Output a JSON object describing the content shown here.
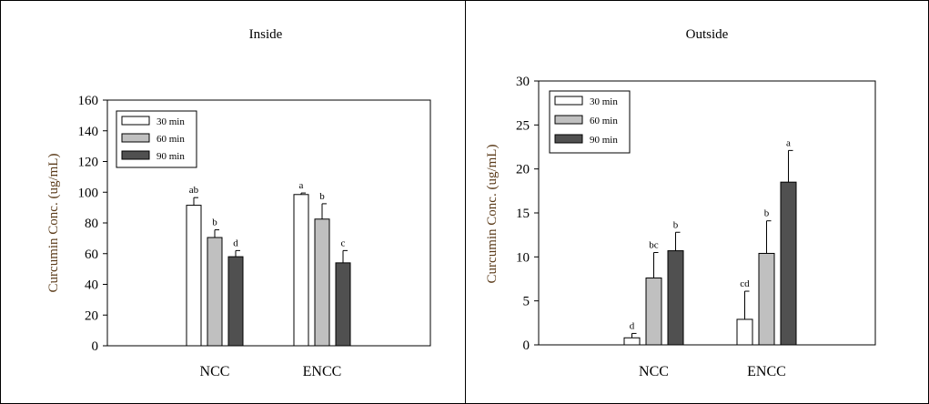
{
  "colors": {
    "series": [
      "#ffffff",
      "#c0c0c0",
      "#505050"
    ],
    "ylabel": "#5a3a18",
    "frame": "#000000"
  },
  "chart_data": [
    {
      "type": "bar",
      "title": "Inside",
      "ylabel": "Curcumin Conc. (ug/mL)",
      "xlabel": "",
      "categories": [
        "NCC",
        "ENCC"
      ],
      "ylim": [
        0,
        160
      ],
      "yticks": [
        0,
        20,
        40,
        60,
        80,
        100,
        120,
        140,
        160
      ],
      "grid": false,
      "legend_position": "top-left",
      "series": [
        {
          "name": "30 min",
          "values": [
            91.5,
            98.5
          ],
          "errors": [
            5,
            1
          ],
          "labels": [
            "ab",
            "a"
          ]
        },
        {
          "name": "60 min",
          "values": [
            70.5,
            82.5
          ],
          "errors": [
            5,
            10
          ],
          "labels": [
            "b",
            "b"
          ]
        },
        {
          "name": "90 min",
          "values": [
            58,
            54
          ],
          "errors": [
            4,
            8
          ],
          "labels": [
            "d",
            "c"
          ]
        }
      ]
    },
    {
      "type": "bar",
      "title": "Outside",
      "ylabel": "Curcumin Conc. (ug/mL)",
      "xlabel": "",
      "categories": [
        "NCC",
        "ENCC"
      ],
      "ylim": [
        0,
        30
      ],
      "yticks": [
        0,
        5,
        10,
        15,
        20,
        25,
        30
      ],
      "grid": false,
      "legend_position": "top-left",
      "series": [
        {
          "name": "30 min",
          "values": [
            0.8,
            2.9
          ],
          "errors": [
            0.5,
            3.2
          ],
          "labels": [
            "d",
            "cd"
          ]
        },
        {
          "name": "60 min",
          "values": [
            7.6,
            10.4
          ],
          "errors": [
            2.9,
            3.7
          ],
          "labels": [
            "bc",
            "b"
          ]
        },
        {
          "name": "90 min",
          "values": [
            10.7,
            18.5
          ],
          "errors": [
            2.1,
            3.6
          ],
          "labels": [
            "b",
            "a"
          ]
        }
      ]
    }
  ]
}
